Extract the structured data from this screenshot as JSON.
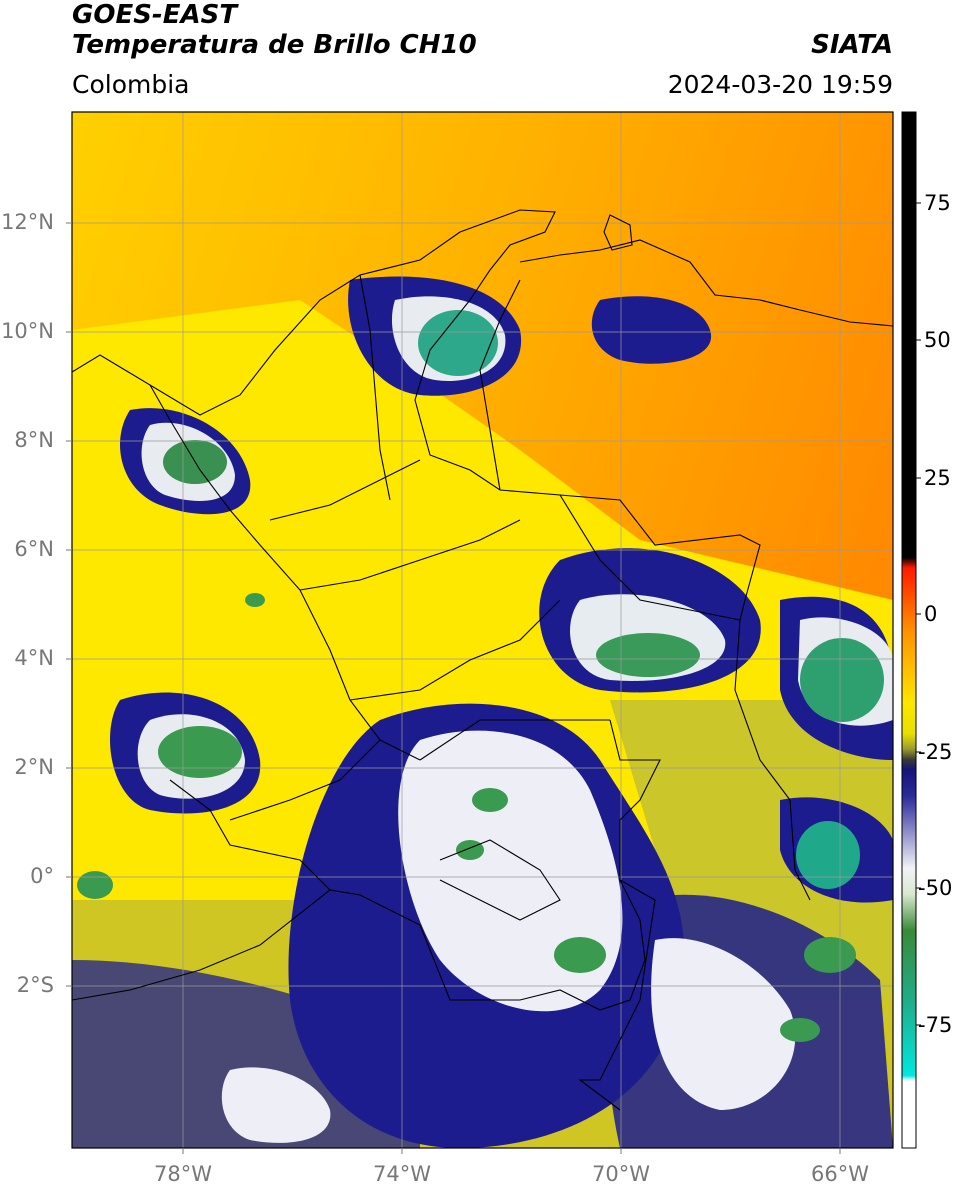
{
  "header": {
    "satellite": "GOES-EAST",
    "product": "Temperatura de Brillo CH10",
    "region": "Colombia",
    "organization": "SIATA",
    "timestamp": "2024-03-20 19:59"
  },
  "map": {
    "lat_labels": [
      "12°N",
      "10°N",
      "8°N",
      "6°N",
      "4°N",
      "2°N",
      "0°",
      "2°S"
    ],
    "lon_labels": [
      "78°W",
      "74°W",
      "70°W",
      "66°W"
    ],
    "colorbar": {
      "ticks": [
        "75",
        "50",
        "25",
        "0",
        "-25",
        "-50",
        "-75"
      ],
      "min": -95,
      "max": 90
    },
    "colors": {
      "warm_orange": "#ff9800",
      "yellow": "#ffeb00",
      "olive": "#c8c820",
      "navy": "#1a1a8c",
      "white": "#ffffff",
      "green": "#2e8b3c",
      "teal": "#1fae8c",
      "red": "#ff2000",
      "black": "#000000"
    }
  }
}
